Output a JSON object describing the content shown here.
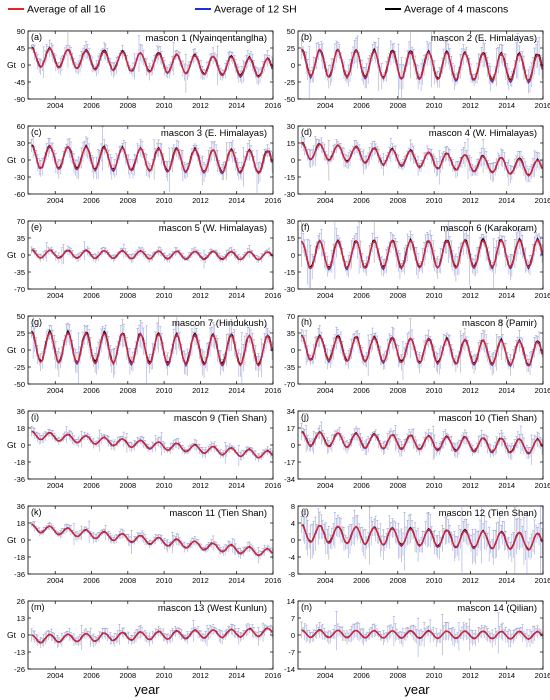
{
  "legend": [
    {
      "label": "Average of all 16",
      "color": "#e8202a"
    },
    {
      "label": "Average of 12 SH",
      "color": "#1f2fd6"
    },
    {
      "label": "Average of 4 mascons",
      "color": "#000000"
    }
  ],
  "ylabel": "Gt",
  "xlabel": "year",
  "chart_data": {
    "type": "line",
    "xlim": [
      2002.5,
      2016
    ],
    "xticks": [
      "2004",
      "2006",
      "2008",
      "2010",
      "2012",
      "2014",
      "2016"
    ],
    "xtick_values": [
      2004,
      2006,
      2008,
      2010,
      2012,
      2014,
      2016
    ],
    "series_names": [
      "Average of all 16",
      "Average of 12 SH",
      "Average of 4 mascons"
    ],
    "error_bars": true,
    "panels": [
      {
        "label": "(a)",
        "title": "mascon  1 (Nyainqentanglha)",
        "ylim": [
          -90,
          90
        ],
        "yticks": [
          -90,
          -45,
          0,
          45,
          90
        ],
        "amp": 25,
        "trend": -2.2,
        "offset": 20
      },
      {
        "label": "(b)",
        "title": "mascon  2 (E. Himalayas)",
        "ylim": [
          -50,
          50
        ],
        "yticks": [
          -50,
          -25,
          0,
          25,
          50
        ],
        "amp": 20,
        "trend": -0.6,
        "offset": 3
      },
      {
        "label": "(c)",
        "title": "mascon  3 (E. Himalayas)",
        "ylim": [
          -60,
          60
        ],
        "yticks": [
          -60,
          -30,
          0,
          30,
          60
        ],
        "amp": 20,
        "trend": -0.7,
        "offset": 5
      },
      {
        "label": "(d)",
        "title": "mascon  4 (W. Himalayas)",
        "ylim": [
          -30,
          30
        ],
        "yticks": [
          -30,
          -15,
          0,
          15,
          30
        ],
        "amp": 7,
        "trend": -1.2,
        "offset": 8
      },
      {
        "label": "(e)",
        "title": "mascon  5 (W. Himalayas)",
        "ylim": [
          -70,
          70
        ],
        "yticks": [
          -70,
          -35,
          0,
          35,
          70
        ],
        "amp": 8,
        "trend": -0.3,
        "offset": 2
      },
      {
        "label": "(f)",
        "title": "mascon  6 (Karakoram)",
        "ylim": [
          -30,
          30
        ],
        "yticks": [
          -30,
          -15,
          0,
          15,
          30
        ],
        "amp": 12,
        "trend": 0.1,
        "offset": 0
      },
      {
        "label": "(g)",
        "title": "mascon  7 (Hindukush)",
        "ylim": [
          -50,
          50
        ],
        "yticks": [
          -50,
          -25,
          0,
          25,
          50
        ],
        "amp": 22,
        "trend": -0.4,
        "offset": 4
      },
      {
        "label": "(h)",
        "title": "mascon  8 (Pamir)",
        "ylim": [
          -70,
          70
        ],
        "yticks": [
          -70,
          -35,
          0,
          35,
          70
        ],
        "amp": 25,
        "trend": -0.9,
        "offset": 4
      },
      {
        "label": "(i)",
        "title": "mascon  9 (Tien Shan)",
        "ylim": [
          -36,
          36
        ],
        "yticks": [
          -36,
          -18,
          0,
          18,
          36
        ],
        "amp": 4,
        "trend": -1.6,
        "offset": 10
      },
      {
        "label": "(j)",
        "title": "mascon 10 (Tien Shan)",
        "ylim": [
          -34,
          34
        ],
        "yticks": [
          -34,
          -17,
          0,
          17,
          34
        ],
        "amp": 7,
        "trend": -0.6,
        "offset": 6
      },
      {
        "label": "(k)",
        "title": "mascon 11 (Tien Shan)",
        "ylim": [
          -36,
          36
        ],
        "yticks": [
          -36,
          -18,
          0,
          18,
          36
        ],
        "amp": 4,
        "trend": -2.0,
        "offset": 12
      },
      {
        "label": "(l)",
        "title": "mascon 12 (Tien Shan)",
        "ylim": [
          -8,
          8
        ],
        "yticks": [
          -8,
          -4,
          0,
          4,
          8
        ],
        "amp": 2,
        "trend": -0.15,
        "offset": 1.5
      },
      {
        "label": "(m)",
        "title": "mascon 13 (West Kunlun)",
        "ylim": [
          -26,
          26
        ],
        "yticks": [
          -26,
          -13,
          0,
          13,
          26
        ],
        "amp": 3,
        "trend": 0.4,
        "offset": -3
      },
      {
        "label": "(n)",
        "title": "mascon 14 (Qilian)",
        "ylim": [
          -14,
          14
        ],
        "yticks": [
          -14,
          -7,
          0,
          7,
          14
        ],
        "amp": 1.5,
        "trend": -0.05,
        "offset": 0.5
      }
    ]
  }
}
